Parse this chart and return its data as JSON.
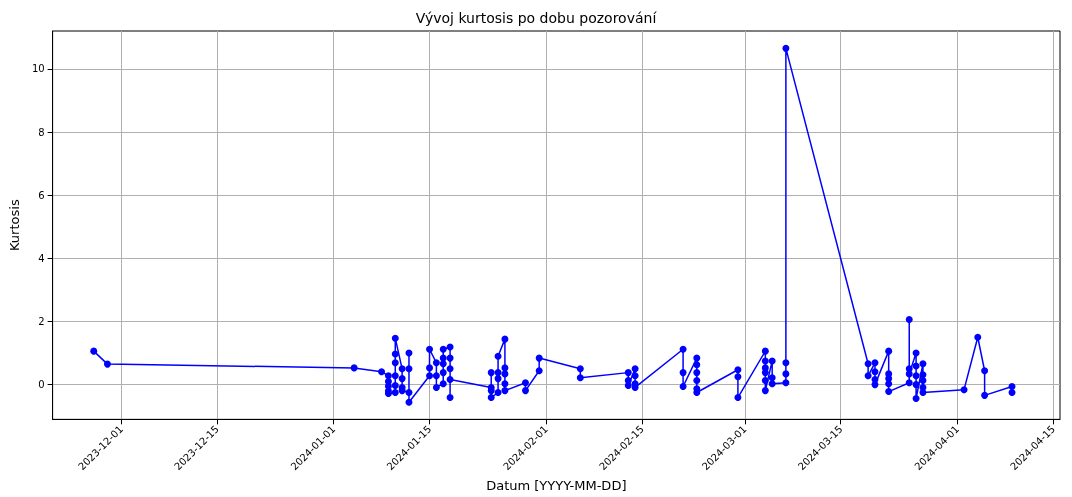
{
  "chart_data": {
    "type": "line",
    "title": "Vývoj kurtosis po dobu pozorování",
    "xlabel": "Datum [YYYY-MM-DD]",
    "ylabel": "Kurtosis",
    "xlim": [
      "2023-11-21",
      "2024-04-16"
    ],
    "ylim": [
      -1.1,
      11.2
    ],
    "xticks": [
      {
        "value": "2023-12-01",
        "label": "2023-12-01"
      },
      {
        "value": "2023-12-15",
        "label": "2023-12-15"
      },
      {
        "value": "2024-01-01",
        "label": "2024-01-01"
      },
      {
        "value": "2024-01-15",
        "label": "2024-01-15"
      },
      {
        "value": "2024-02-01",
        "label": "2024-02-01"
      },
      {
        "value": "2024-02-15",
        "label": "2024-02-15"
      },
      {
        "value": "2024-03-01",
        "label": "2024-03-01"
      },
      {
        "value": "2024-03-15",
        "label": "2024-03-15"
      },
      {
        "value": "2024-04-01",
        "label": "2024-04-01"
      },
      {
        "value": "2024-04-15",
        "label": "2024-04-15"
      }
    ],
    "yticks": [
      0,
      2,
      4,
      6,
      8,
      10
    ],
    "grid": true,
    "marker": "circle",
    "line_style": "solid",
    "series": [
      {
        "color": "#0000ff",
        "x": [
          "2023-11-27",
          "2023-11-29",
          "2024-01-04",
          "2024-01-08",
          "2024-01-09",
          "2024-01-09",
          "2024-01-09",
          "2024-01-09",
          "2024-01-09",
          "2024-01-10",
          "2024-01-10",
          "2024-01-10",
          "2024-01-10",
          "2024-01-10",
          "2024-01-10",
          "2024-01-11",
          "2024-01-11",
          "2024-01-11",
          "2024-01-11",
          "2024-01-12",
          "2024-01-12",
          "2024-01-12",
          "2024-01-12",
          "2024-01-15",
          "2024-01-15",
          "2024-01-15",
          "2024-01-16",
          "2024-01-16",
          "2024-01-16",
          "2024-01-17",
          "2024-01-17",
          "2024-01-17",
          "2024-01-17",
          "2024-01-17",
          "2024-01-18",
          "2024-01-18",
          "2024-01-18",
          "2024-01-18",
          "2024-01-18",
          "2024-01-24",
          "2024-01-24",
          "2024-01-24",
          "2024-01-24",
          "2024-01-25",
          "2024-01-25",
          "2024-01-25",
          "2024-01-25",
          "2024-01-26",
          "2024-01-26",
          "2024-01-26",
          "2024-01-26",
          "2024-01-26",
          "2024-01-29",
          "2024-01-29",
          "2024-01-31",
          "2024-01-31",
          "2024-02-06",
          "2024-02-06",
          "2024-02-13",
          "2024-02-13",
          "2024-02-13",
          "2024-02-14",
          "2024-02-14",
          "2024-02-14",
          "2024-02-14",
          "2024-02-21",
          "2024-02-21",
          "2024-02-21",
          "2024-02-23",
          "2024-02-23",
          "2024-02-23",
          "2024-02-23",
          "2024-02-23",
          "2024-02-23",
          "2024-02-29",
          "2024-02-29",
          "2024-02-29",
          "2024-03-04",
          "2024-03-04",
          "2024-03-04",
          "2024-03-04",
          "2024-03-04",
          "2024-03-04",
          "2024-03-05",
          "2024-03-05",
          "2024-03-05",
          "2024-03-07",
          "2024-03-07",
          "2024-03-07",
          "2024-03-07",
          "2024-03-19",
          "2024-03-19",
          "2024-03-20",
          "2024-03-20",
          "2024-03-20",
          "2024-03-20",
          "2024-03-22",
          "2024-03-22",
          "2024-03-22",
          "2024-03-22",
          "2024-03-22",
          "2024-03-25",
          "2024-03-25",
          "2024-03-25",
          "2024-03-25",
          "2024-03-26",
          "2024-03-26",
          "2024-03-26",
          "2024-03-26",
          "2024-03-26",
          "2024-03-27",
          "2024-03-27",
          "2024-03-27",
          "2024-03-27",
          "2024-03-27",
          "2024-04-02",
          "2024-04-04",
          "2024-04-05",
          "2024-04-05",
          "2024-04-09",
          "2024-04-09"
        ],
        "values": [
          1.06,
          0.65,
          0.53,
          0.41,
          0.28,
          0.1,
          -0.05,
          -0.2,
          -0.28,
          -0.25,
          -0.03,
          0.28,
          0.69,
          0.97,
          1.47,
          0.5,
          0.19,
          -0.09,
          -0.19,
          -0.25,
          0.5,
          1.0,
          -0.56,
          0.28,
          0.53,
          1.12,
          0.69,
          0.28,
          -0.09,
          0.03,
          0.38,
          0.66,
          0.84,
          1.12,
          1.19,
          0.84,
          0.5,
          -0.41,
          0.16,
          -0.09,
          0.38,
          -0.19,
          -0.41,
          -0.25,
          0.19,
          0.38,
          0.9,
          1.44,
          0.53,
          0.34,
          0.03,
          -0.19,
          0.06,
          -0.19,
          0.44,
          0.84,
          0.5,
          0.22,
          0.38,
          0.13,
          -0.03,
          0.5,
          0.28,
          0.03,
          -0.09,
          1.12,
          0.38,
          -0.06,
          0.84,
          0.63,
          0.38,
          0.13,
          -0.13,
          -0.25,
          0.47,
          0.25,
          -0.41,
          1.06,
          0.75,
          0.53,
          0.38,
          0.13,
          -0.19,
          0.75,
          0.22,
          0.03,
          0.06,
          0.34,
          0.69,
          10.65,
          0.66,
          0.28,
          0.69,
          0.41,
          0.16,
          0.0,
          1.06,
          0.34,
          0.19,
          0.03,
          -0.22,
          0.06,
          2.06,
          0.5,
          0.34,
          1.0,
          0.59,
          0.28,
          0.0,
          -0.44,
          0.66,
          0.31,
          0.13,
          -0.09,
          -0.25,
          -0.16,
          1.5,
          0.44,
          -0.34,
          -0.06,
          -0.25
        ]
      }
    ]
  }
}
